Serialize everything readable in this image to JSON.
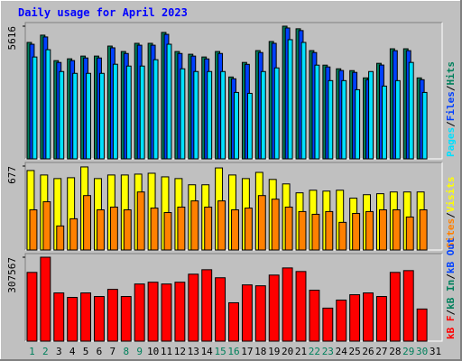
{
  "chart_data": [
    {
      "type": "bar",
      "title": "Daily usage for April 2023",
      "ylim": [
        0,
        5616
      ],
      "yticks": [
        5616
      ],
      "legend_separator": "/",
      "series": [
        {
          "name": "Hits",
          "color": "#00805c",
          "values": [
            4928,
            5236,
            4158,
            4235,
            4350,
            4350,
            4774,
            4543,
            4890,
            4890,
            5352,
            4543,
            4428,
            4312,
            4543,
            3465,
            4081,
            4582,
            4967,
            5616,
            5506,
            4582,
            3966,
            3812,
            3735,
            3427,
            4043,
            4659,
            4659,
            3427,
            null
          ]
        },
        {
          "name": "Files",
          "color": "#0040ff",
          "values": [
            4850,
            5160,
            4080,
            4160,
            4270,
            4270,
            4700,
            4460,
            4810,
            4810,
            5270,
            4460,
            4350,
            4230,
            4460,
            3390,
            4000,
            4500,
            4890,
            5540,
            5430,
            4500,
            3890,
            3740,
            3660,
            3350,
            3970,
            4580,
            4580,
            3350,
            null
          ]
        },
        {
          "name": "Pages",
          "color": "#00e0ff",
          "values": [
            4312,
            4620,
            3696,
            3619,
            3619,
            3619,
            4004,
            3927,
            3927,
            4197,
            4851,
            3812,
            3696,
            3696,
            3696,
            2811,
            2772,
            3696,
            3850,
            5044,
            4928,
            3966,
            3311,
            3311,
            2926,
            3696,
            3080,
            3311,
            4081,
            2811,
            null
          ]
        }
      ]
    },
    {
      "type": "bar",
      "ylim": [
        0,
        677
      ],
      "yticks": [
        677
      ],
      "legend_separator": "/",
      "series": [
        {
          "name": "Visits",
          "color": "#ffff00",
          "values": [
            641,
            605,
            576,
            583,
            670,
            576,
            605,
            605,
            612,
            619,
            590,
            576,
            526,
            526,
            662,
            605,
            576,
            626,
            569,
            533,
            461,
            482,
            475,
            482,
            418,
            446,
            454,
            468,
            468,
            468,
            null
          ]
        },
        {
          "name": "Sites",
          "color": "#ff8000",
          "values": [
            324,
            389,
            194,
            252,
            439,
            324,
            346,
            324,
            468,
            338,
            302,
            346,
            396,
            346,
            396,
            324,
            338,
            439,
            410,
            346,
            310,
            288,
            310,
            223,
            295,
            310,
            324,
            324,
            266,
            324,
            null
          ]
        }
      ]
    },
    {
      "type": "bar",
      "ylim": [
        0,
        307567
      ],
      "yticks": [
        307567
      ],
      "legend_separator": "/",
      "categories": [
        "1",
        "2",
        "3",
        "4",
        "5",
        "6",
        "7",
        "8",
        "9",
        "10",
        "11",
        "12",
        "13",
        "14",
        "15",
        "16",
        "17",
        "18",
        "19",
        "20",
        "21",
        "22",
        "23",
        "24",
        "25",
        "26",
        "27",
        "28",
        "29",
        "30",
        "31"
      ],
      "category_colors": [
        "#00805c",
        "#00805c",
        "#000000",
        "#000000",
        "#000000",
        "#000000",
        "#000000",
        "#00805c",
        "#00805c",
        "#000000",
        "#000000",
        "#000000",
        "#000000",
        "#000000",
        "#00805c",
        "#00805c",
        "#000000",
        "#000000",
        "#000000",
        "#000000",
        "#000000",
        "#00805c",
        "#00805c",
        "#000000",
        "#000000",
        "#000000",
        "#000000",
        "#000000",
        "#00805c",
        "#00805c",
        "#000000"
      ],
      "legend_extra": [
        {
          "name": "kB In",
          "color": "#00805c"
        },
        {
          "name": "kB Out",
          "color": "#0040ff"
        }
      ],
      "series": [
        {
          "name": "kB F",
          "color": "#ff0000",
          "values": [
            251944,
            307567,
            176688,
            160328,
            176688,
            163600,
            189776,
            163600,
            209408,
            215952,
            209408,
            215952,
            245400,
            261760,
            232312,
            140696,
            206136,
            202864,
            242128,
            268304,
            255216,
            186504,
            121064,
            150512,
            170144,
            176688,
            163600,
            251944,
            258488,
            117792,
            null
          ]
        }
      ]
    }
  ]
}
